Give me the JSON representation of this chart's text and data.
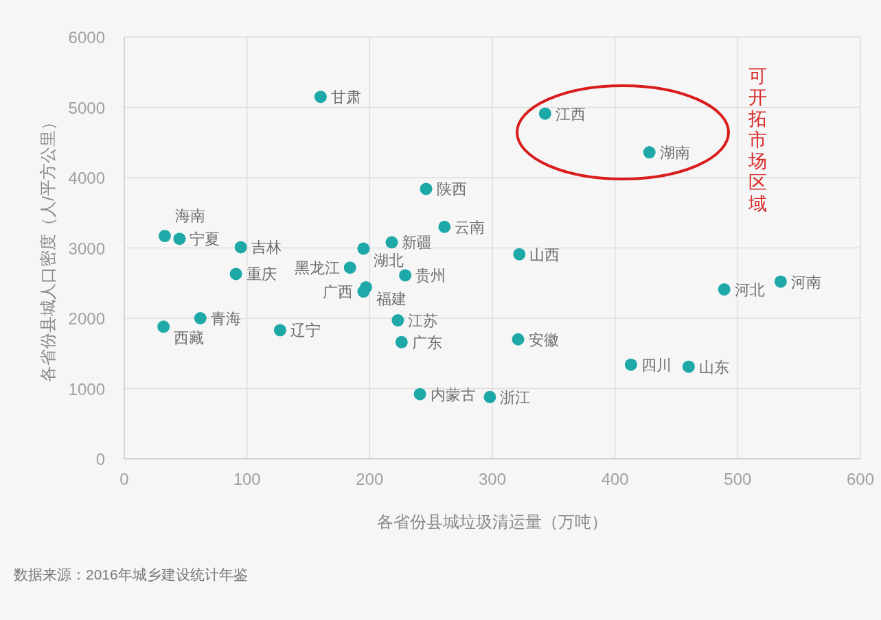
{
  "chart_data": {
    "type": "scatter",
    "xlabel": "各省份县城垃圾清运量（万吨）",
    "ylabel": "各省份县城人口密度（人/平方公里）",
    "xlim": [
      0,
      600
    ],
    "ylim": [
      0,
      6000
    ],
    "xticks": [
      0,
      100,
      200,
      300,
      400,
      500,
      600
    ],
    "yticks": [
      0,
      1000,
      2000,
      3000,
      4000,
      5000,
      6000
    ],
    "grid": true,
    "marker": "circle",
    "series": [
      {
        "color": "#1fa8a8",
        "x": [
          160,
          343,
          428,
          246,
          261,
          33,
          45,
          95,
          195,
          218,
          322,
          184,
          229,
          197,
          195,
          91,
          223,
          226,
          321,
          241,
          298,
          32,
          62,
          127,
          489,
          535,
          413,
          460
        ],
        "values": [
          5150,
          4910,
          4360,
          3840,
          3300,
          3170,
          3130,
          3010,
          2990,
          3080,
          2910,
          2720,
          2610,
          2440,
          2380,
          2630,
          1970,
          1660,
          1700,
          920,
          880,
          1880,
          2000,
          1830,
          2410,
          2520,
          1340,
          1310
        ]
      }
    ],
    "annotations": [
      {
        "text": "甘肃",
        "x": 160,
        "y": 5150
      },
      {
        "text": "江西",
        "x": 343,
        "y": 4910
      },
      {
        "text": "湖南",
        "x": 428,
        "y": 4360
      },
      {
        "text": "陕西",
        "x": 246,
        "y": 3840
      },
      {
        "text": "云南",
        "x": 261,
        "y": 3300
      },
      {
        "text": "海南",
        "x": 33,
        "y": 3170
      },
      {
        "text": "宁夏",
        "x": 45,
        "y": 3130
      },
      {
        "text": "吉林",
        "x": 95,
        "y": 3010
      },
      {
        "text": "湖北",
        "x": 195,
        "y": 2990
      },
      {
        "text": "新疆",
        "x": 218,
        "y": 3080
      },
      {
        "text": "山西",
        "x": 322,
        "y": 2910
      },
      {
        "text": "黑龙江",
        "x": 184,
        "y": 2720
      },
      {
        "text": "贵州",
        "x": 229,
        "y": 2610
      },
      {
        "text": "福建",
        "x": 197,
        "y": 2440
      },
      {
        "text": "广西",
        "x": 195,
        "y": 2380
      },
      {
        "text": "重庆",
        "x": 91,
        "y": 2630
      },
      {
        "text": "江苏",
        "x": 223,
        "y": 1970
      },
      {
        "text": "广东",
        "x": 226,
        "y": 1660
      },
      {
        "text": "安徽",
        "x": 321,
        "y": 1700
      },
      {
        "text": "内蒙古",
        "x": 241,
        "y": 920
      },
      {
        "text": "浙江",
        "x": 298,
        "y": 880
      },
      {
        "text": "西藏",
        "x": 32,
        "y": 1880
      },
      {
        "text": "青海",
        "x": 62,
        "y": 2000
      },
      {
        "text": "辽宁",
        "x": 127,
        "y": 1830
      },
      {
        "text": "河北",
        "x": 489,
        "y": 2410
      },
      {
        "text": "河南",
        "x": 535,
        "y": 2520
      },
      {
        "text": "四川",
        "x": 413,
        "y": 1340
      },
      {
        "text": "山东",
        "x": 460,
        "y": 1310
      },
      "可开拓市场区域",
      "数据来源：2016年城乡建设统计年鉴"
    ]
  }
}
